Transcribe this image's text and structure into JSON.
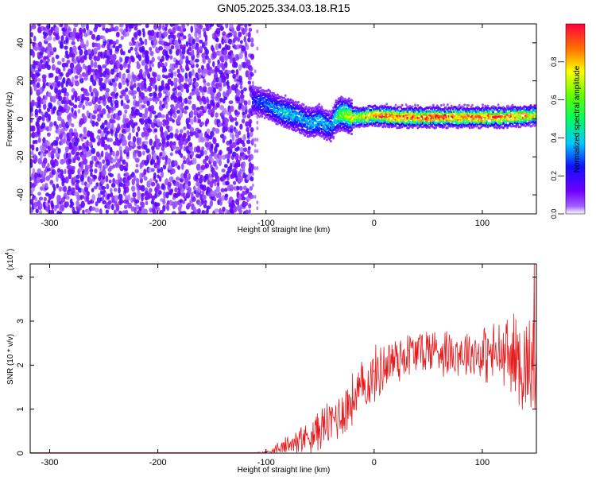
{
  "title": "GN05.2025.334.03.18.R15",
  "chart_data": [
    {
      "type": "heatmap",
      "xlabel": "Height of straight line (km)",
      "ylabel": "Frequency (Hz)",
      "xlim": [
        -318,
        150
      ],
      "ylim": [
        -50,
        50
      ],
      "x_ticks": [
        -300,
        -200,
        -100,
        0,
        100
      ],
      "x_tick_labels": [
        "-300",
        "-200",
        "-100",
        "0",
        "100"
      ],
      "y_ticks": [
        -40,
        -20,
        0,
        20,
        40
      ],
      "y_tick_labels": [
        "-40",
        "-20",
        "0",
        "20",
        "40"
      ],
      "noise_region": {
        "x": [
          -318,
          -112
        ],
        "frequency": [
          -50,
          50
        ],
        "amplitude_range": [
          0.0,
          0.15
        ]
      },
      "signal_ridge": {
        "x": [
          -112,
          -100,
          -90,
          -80,
          -70,
          -60,
          -50,
          -45,
          -40,
          -35,
          -30,
          -20,
          -10,
          0,
          20,
          40,
          60,
          80,
          100,
          120,
          150
        ],
        "frequency": [
          10,
          8,
          5,
          3,
          1,
          -2,
          -1,
          -3,
          -4,
          1,
          3,
          1,
          1,
          2,
          1,
          1,
          1,
          1,
          1,
          1,
          2
        ],
        "peak_amplitude": [
          0.25,
          0.3,
          0.35,
          0.4,
          0.35,
          0.35,
          0.4,
          0.35,
          0.3,
          0.5,
          0.6,
          0.7,
          0.75,
          0.85,
          0.9,
          0.9,
          0.9,
          0.9,
          0.9,
          0.9,
          0.7
        ]
      },
      "colorbar": {
        "label": "Normalized spectral amplitude",
        "range": [
          0.0,
          1.0
        ],
        "ticks": [
          0.0,
          0.2,
          0.4,
          0.6,
          0.8
        ],
        "tick_labels": [
          "0.0",
          "0.2",
          "0.4",
          "0.6",
          "0.8"
        ],
        "colormap": "rainbow"
      }
    },
    {
      "type": "line",
      "xlabel": "Height of straight line (km)",
      "ylabel": "SNR (10 * v/v)",
      "y_multiplier_label": "(x10",
      "y_multiplier_exp": "4",
      "xlim": [
        -318,
        150
      ],
      "ylim": [
        0,
        4.3
      ],
      "x_ticks": [
        -300,
        -200,
        -100,
        0,
        100
      ],
      "x_tick_labels": [
        "-300",
        "-200",
        "-100",
        "0",
        "100"
      ],
      "y_ticks": [
        0,
        1,
        2,
        3,
        4
      ],
      "y_tick_labels": [
        "0",
        "1",
        "2",
        "3",
        "4"
      ],
      "series": [
        {
          "color": "#e41a1c",
          "x": [
            -318,
            -200,
            -110,
            -100,
            -90,
            -80,
            -70,
            -60,
            -50,
            -40,
            -30,
            -20,
            -10,
            0,
            10,
            20,
            30,
            40,
            50,
            60,
            70,
            80,
            90,
            100,
            110,
            120,
            130,
            140,
            150
          ],
          "y": [
            0.01,
            0.01,
            0.01,
            0.02,
            0.08,
            0.2,
            0.3,
            0.4,
            0.55,
            0.7,
            0.95,
            1.2,
            1.5,
            1.75,
            2.0,
            2.15,
            2.25,
            2.3,
            2.35,
            2.35,
            2.3,
            2.3,
            2.3,
            2.25,
            2.25,
            2.2,
            2.15,
            2.05,
            1.9
          ],
          "noise_amplitude": [
            0,
            0,
            0,
            0.02,
            0.08,
            0.15,
            0.2,
            0.25,
            0.3,
            0.35,
            0.4,
            0.4,
            0.4,
            0.4,
            0.4,
            0.4,
            0.35,
            0.35,
            0.35,
            0.35,
            0.35,
            0.35,
            0.35,
            0.4,
            0.45,
            0.55,
            0.65,
            0.75,
            0.8
          ],
          "spike": {
            "x": 148,
            "y": 4.3
          }
        }
      ]
    }
  ]
}
